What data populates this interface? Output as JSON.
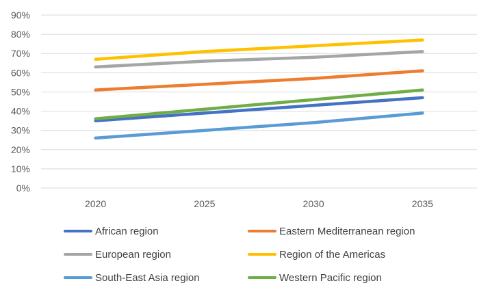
{
  "chart_data": {
    "type": "line",
    "title": "",
    "xlabel": "",
    "ylabel": "",
    "categories": [
      "2020",
      "2025",
      "2030",
      "2035"
    ],
    "ylim": [
      0,
      90
    ],
    "yticks": [
      "0%",
      "10%",
      "20%",
      "30%",
      "40%",
      "50%",
      "60%",
      "70%",
      "80%",
      "90%"
    ],
    "grid": true,
    "legend_position": "bottom",
    "series": [
      {
        "name": "African region",
        "values": [
          35,
          39,
          43,
          47
        ],
        "color": "#4472C4"
      },
      {
        "name": "Eastern Mediterranean region",
        "values": [
          51,
          54,
          57,
          61
        ],
        "color": "#ED7D31"
      },
      {
        "name": "European region",
        "values": [
          63,
          66,
          68,
          71
        ],
        "color": "#A5A5A5"
      },
      {
        "name": "Region of the Americas",
        "values": [
          67,
          71,
          74,
          77
        ],
        "color": "#FFC000"
      },
      {
        "name": "South-East Asia region",
        "values": [
          26,
          30,
          34,
          39
        ],
        "color": "#5B9BD5"
      },
      {
        "name": "Western Pacific region",
        "values": [
          36,
          41,
          46,
          51
        ],
        "color": "#70AD47"
      }
    ]
  }
}
